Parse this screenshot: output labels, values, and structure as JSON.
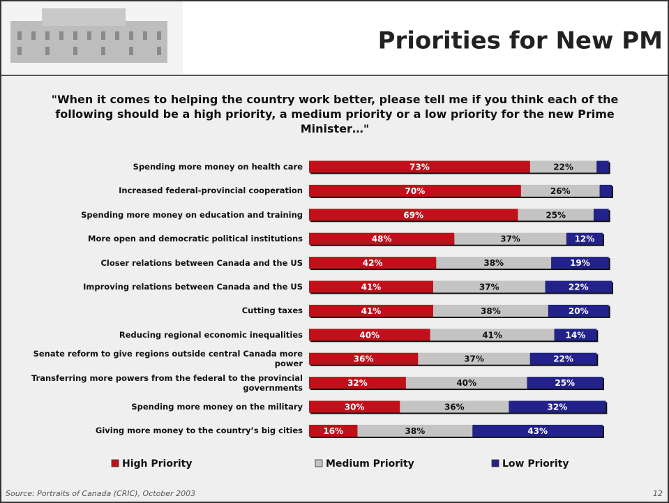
{
  "chart_data": {
    "type": "stacked-bar-horizontal",
    "title": "Priorities for New PM",
    "subtitle": "\"When it comes to helping the country work better, please tell me if you think each of the following should be a high priority, a medium priority or a low priority for the new Prime Minister…\"",
    "categories": [
      "Spending more money on health care",
      "Increased federal-provincial cooperation",
      "Spending more money  on education and training",
      "More open and democratic political institutions",
      "Closer relations between Canada and the US",
      "Improving relations between Canada and the US",
      "Cutting taxes",
      "Reducing regional economic inequalities",
      "Senate reform to give regions outside central Canada more power",
      "Transferring more powers from the federal to the provincial governments",
      "Spending more money on the military",
      "Giving more money to the country’s big cities"
    ],
    "series": [
      {
        "name": "High Priority",
        "color": "#c0101a",
        "values": [
          73,
          70,
          69,
          48,
          42,
          41,
          41,
          40,
          36,
          32,
          30,
          16
        ],
        "value_labels": [
          "73%",
          "70%",
          "69%",
          "48%",
          "42%",
          "41%",
          "41%",
          "40%",
          "36%",
          "32%",
          "30%",
          "16%"
        ]
      },
      {
        "name": "Medium Priority",
        "color": "#c4c4c4",
        "values": [
          22,
          26,
          25,
          37,
          38,
          37,
          38,
          41,
          37,
          40,
          36,
          38
        ],
        "value_labels": [
          "22%",
          "26%",
          "25%",
          "37%",
          "38%",
          "37%",
          "38%",
          "41%",
          "37%",
          "40%",
          "36%",
          "38%"
        ]
      },
      {
        "name": "Low Priority",
        "color": "#22228a",
        "values": [
          4,
          4,
          5,
          12,
          19,
          22,
          20,
          14,
          22,
          25,
          32,
          43
        ],
        "value_labels": [
          null,
          null,
          null,
          "12%",
          "19%",
          "22%",
          "20%",
          "14%",
          "22%",
          "25%",
          "32%",
          "43%"
        ]
      }
    ]
  },
  "source": "Source: Portraits of Canada (CRIC), October 2003",
  "page_number": "12"
}
